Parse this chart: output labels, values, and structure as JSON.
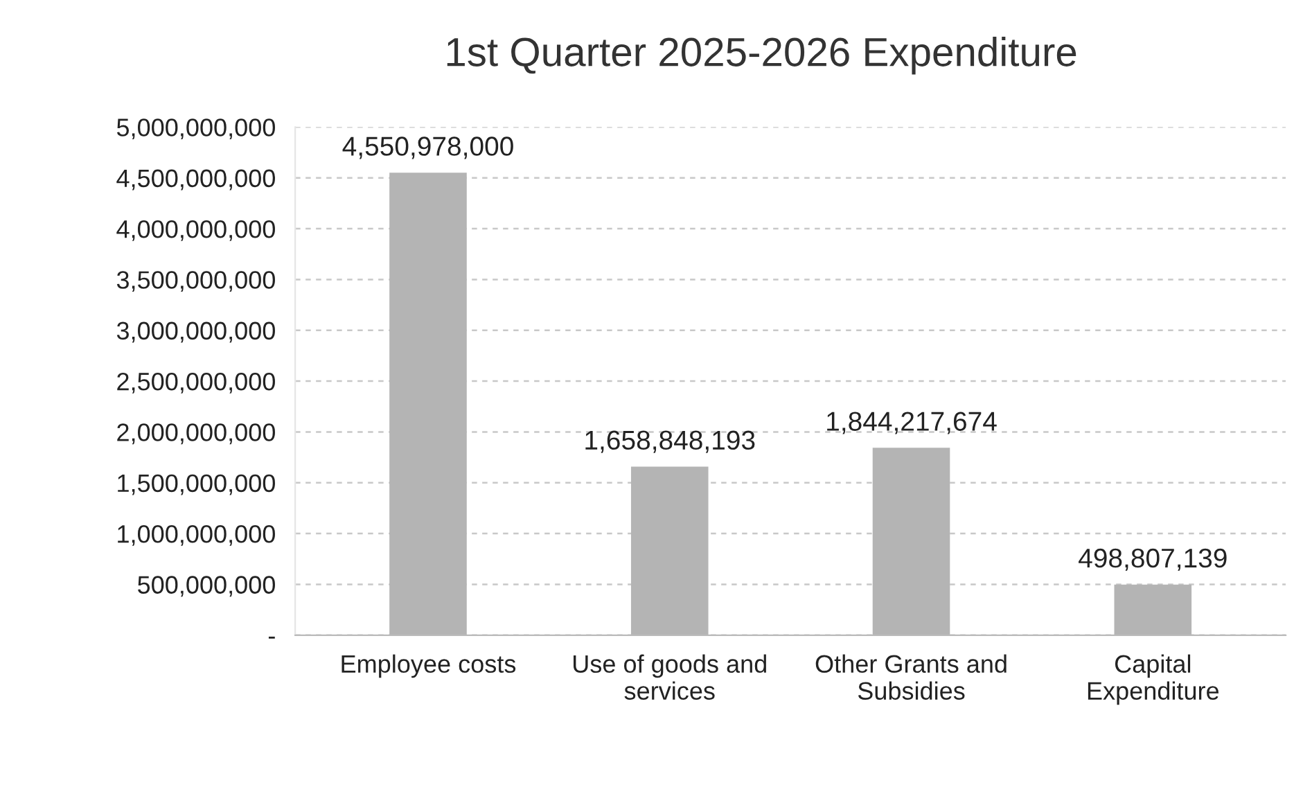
{
  "chart_data": {
    "type": "bar",
    "title": "1st Quarter 2025-2026 Expenditure",
    "categories": [
      "Employee costs",
      "Use of goods and services",
      "Other Grants and Subsidies",
      "Capital Expenditure"
    ],
    "values": [
      4550978000,
      1658848193,
      1844217674,
      498807139
    ],
    "value_labels": [
      "4,550,978,000",
      "1,658,848,193",
      "1,844,217,674",
      "498,807,139"
    ],
    "color": "#b4b4b4",
    "ylim": [
      0,
      5000000000
    ],
    "yticks": [
      {
        "value": 0,
        "label": "-"
      },
      {
        "value": 500000000,
        "label": "500,000,000"
      },
      {
        "value": 1000000000,
        "label": "1,000,000,000"
      },
      {
        "value": 1500000000,
        "label": "1,500,000,000"
      },
      {
        "value": 2000000000,
        "label": "2,000,000,000"
      },
      {
        "value": 2500000000,
        "label": "2,500,000,000"
      },
      {
        "value": 3000000000,
        "label": "3,000,000,000"
      },
      {
        "value": 3500000000,
        "label": "3,500,000,000"
      },
      {
        "value": 4000000000,
        "label": "4,000,000,000"
      },
      {
        "value": 4500000000,
        "label": "4,500,000,000"
      },
      {
        "value": 5000000000,
        "label": "5,000,000,000"
      }
    ],
    "grid": "y"
  }
}
